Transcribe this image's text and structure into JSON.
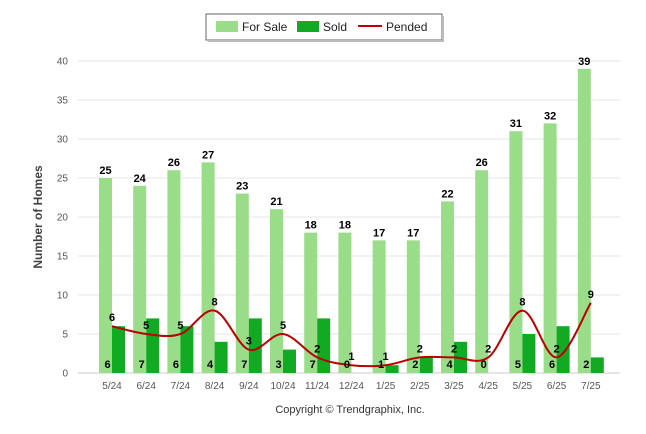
{
  "chart_data": {
    "type": "bar",
    "categories": [
      "5/24",
      "6/24",
      "7/24",
      "8/24",
      "9/24",
      "10/24",
      "11/24",
      "12/24",
      "1/25",
      "2/25",
      "3/25",
      "4/25",
      "5/25",
      "6/25",
      "7/25"
    ],
    "series": [
      {
        "name": "For Sale",
        "type": "bar",
        "color": "#99dd88",
        "values": [
          25,
          24,
          26,
          27,
          23,
          21,
          18,
          18,
          17,
          17,
          22,
          26,
          31,
          32,
          39
        ]
      },
      {
        "name": "Sold",
        "type": "bar",
        "color": "#11aa22",
        "values": [
          6,
          7,
          6,
          4,
          7,
          3,
          7,
          0,
          1,
          2,
          4,
          0,
          5,
          6,
          2
        ]
      },
      {
        "name": "Pended",
        "type": "line",
        "color": "#bb0000",
        "values": [
          6,
          5,
          5,
          8,
          3,
          5,
          2,
          1,
          1,
          2,
          2,
          2,
          8,
          2,
          9
        ]
      }
    ],
    "ylabel": "Number of Homes",
    "xlabel": "",
    "ylim": [
      0,
      40
    ],
    "yticks": [
      0,
      5,
      10,
      15,
      20,
      25,
      30,
      35,
      40
    ],
    "legend_position": "top-center",
    "grid": true,
    "copyright": "Copyright © Trendgraphix, Inc."
  }
}
